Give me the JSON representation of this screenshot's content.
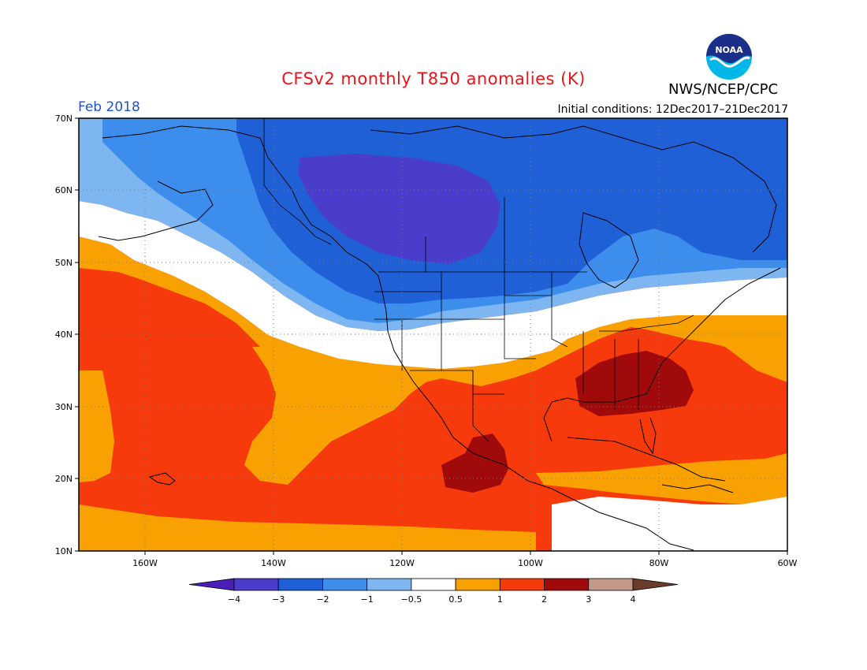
{
  "title": "CFSv2 monthly T850 anomalies (K)",
  "month": "Feb 2018",
  "initial_conditions": "Initial conditions: 12Dec2017–21Dec2017",
  "agency": "NWS/NCEP/CPC",
  "logo_text": "NOAA",
  "map": {
    "lon_range": [
      -172,
      -60
    ],
    "lat_range": [
      10,
      70
    ],
    "lat_labels": [
      "70N",
      "60N",
      "50N",
      "40N",
      "30N",
      "20N",
      "10N"
    ],
    "lon_labels": [
      "160W",
      "140W",
      "120W",
      "100W",
      "80W",
      "60W"
    ]
  },
  "colorbar": {
    "labels": [
      "−4",
      "−3",
      "−2",
      "−1",
      "−0.5",
      "0.5",
      "1",
      "2",
      "3",
      "4"
    ],
    "colors": [
      "#4a1fb8",
      "#4b3dcc",
      "#2060d6",
      "#3d8ded",
      "#7eb6f2",
      "#ffffff",
      "#f9a100",
      "#f73a0b",
      "#a10a0a",
      "#c5998a",
      "#6b3c29"
    ]
  }
}
